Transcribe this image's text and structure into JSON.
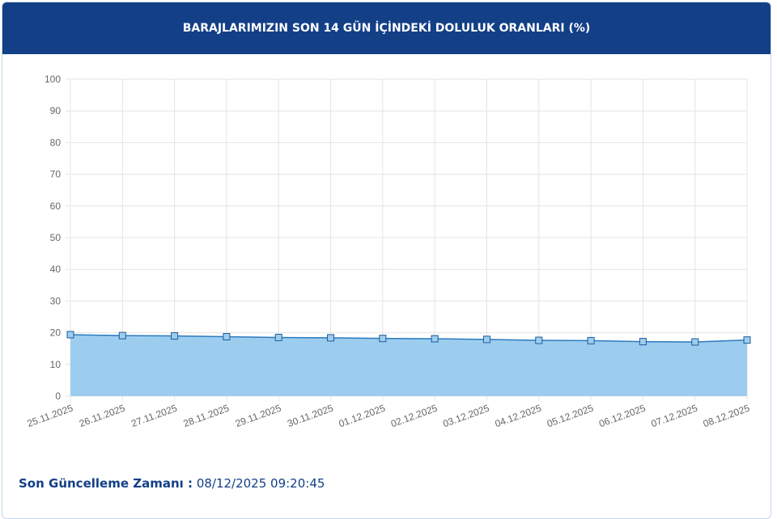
{
  "chart_data": {
    "type": "line",
    "title": "BARAJLARIMIZIN SON 14 GÜN İÇİNDEKİ DOLULUK ORANLARI (%)",
    "categories": [
      "25.11.2025",
      "26.11.2025",
      "27.11.2025",
      "28.11.2025",
      "29.11.2025",
      "30.11.2025",
      "01.12.2025",
      "02.12.2025",
      "03.12.2025",
      "04.12.2025",
      "05.12.2025",
      "06.12.2025",
      "07.12.2025",
      "08.12.2025"
    ],
    "series": [
      {
        "color": "#2b7bbf",
        "fill": "#9dcdee",
        "values": [
          19.4,
          19.1,
          19.0,
          18.75,
          18.5,
          18.4,
          18.2,
          18.1,
          17.9,
          17.6,
          17.5,
          17.2,
          17.1,
          17.7
        ]
      }
    ],
    "ylim": [
      0,
      100
    ],
    "yticks": [
      0,
      10,
      20,
      30,
      40,
      50,
      60,
      70,
      80,
      90,
      100
    ],
    "grid": true
  },
  "footer": {
    "label": "Son Güncelleme Zamanı :",
    "value": "08/12/2025 09:20:45"
  }
}
